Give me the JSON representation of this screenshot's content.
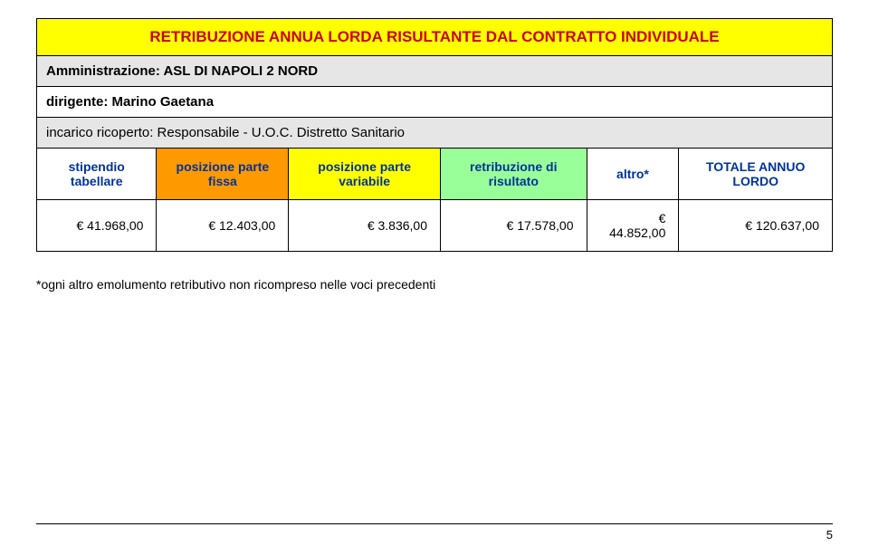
{
  "title": "RETRIBUZIONE ANNUA LORDA RISULTANTE DAL CONTRATTO INDIVIDUALE",
  "admin_label": "Amministrazione: ASL DI NAPOLI 2 NORD",
  "dirigente_label": "dirigente: Marino Gaetana",
  "incarico_label": "incarico ricoperto: Responsabile - U.O.C. Distretto Sanitario",
  "columns": {
    "stipendio": "stipendio tabellare",
    "pos_fissa": "posizione parte fissa",
    "pos_variabile": "posizione parte variabile",
    "retribuzione": "retribuzione di risultato",
    "altro": "altro*",
    "totale": "TOTALE ANNUO LORDO"
  },
  "values": {
    "stipendio": "€ 41.968,00",
    "pos_fissa": "€ 12.403,00",
    "pos_variabile": "€ 3.836,00",
    "retribuzione": "€ 17.578,00",
    "altro": "€ 44.852,00",
    "totale": "€ 120.637,00"
  },
  "footnote": "*ogni altro emolumento retributivo non ricompreso nelle voci precedenti",
  "page_number": "5",
  "colors": {
    "title_bg": "#ffff00",
    "title_text": "#cc0000",
    "admin_bg": "#e6e6e6",
    "header_text": "#003399",
    "col_orange": "#ff9900",
    "col_yellow": "#ffff00",
    "col_green": "#99ff99",
    "border": "#000000"
  },
  "column_widths_pct": [
    16.6,
    16.6,
    16.6,
    16.6,
    16.6,
    16.6
  ]
}
